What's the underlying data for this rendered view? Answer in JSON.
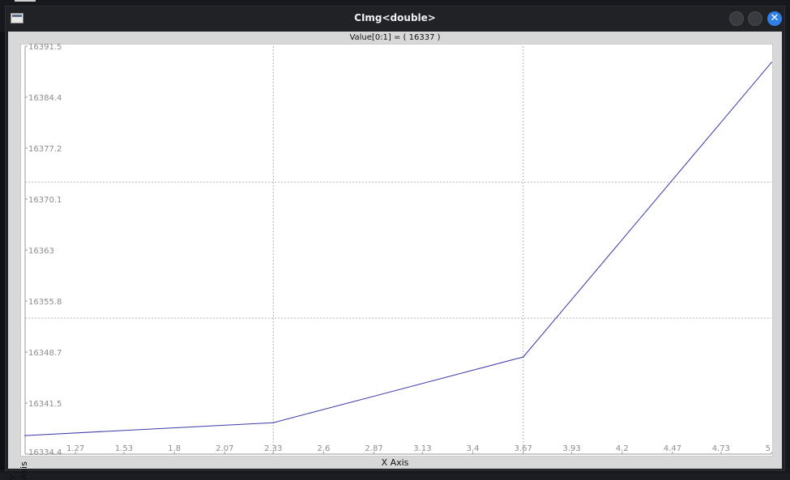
{
  "window": {
    "title": "CImg<double>",
    "close_glyph": "✕",
    "value_label": "Value[0:1] = ( 16337 )"
  },
  "chart_data": {
    "type": "line",
    "title": "",
    "xlabel": "X Axis",
    "ylabel": "Y Axis",
    "xlim": [
      1,
      5
    ],
    "ylim": [
      16334.4,
      16391.5
    ],
    "x_ticks": [
      "1.27",
      "1.53",
      "1.8",
      "2.07",
      "2.33",
      "2.6",
      "2.87",
      "3.13",
      "3.4",
      "3.67",
      "3.93",
      "4.2",
      "4.47",
      "4.73",
      "5"
    ],
    "y_ticks": [
      "16391.5",
      "16384.4",
      "16377.2",
      "16370.1",
      "16363",
      "16355.8",
      "16348.7",
      "16341.5",
      "16334.4"
    ],
    "grid": true,
    "series": [
      {
        "x": [
          1,
          2.33,
          3.67,
          5
        ],
        "y": [
          16337,
          16338.8,
          16348.0,
          16389.2
        ],
        "color": "#3a3aa8"
      }
    ]
  },
  "colors": {
    "plot_background": "#ffffff",
    "grid": "#b4b4b4",
    "tick_text": "#8c8c8c",
    "accent": "#2f7fe8"
  }
}
